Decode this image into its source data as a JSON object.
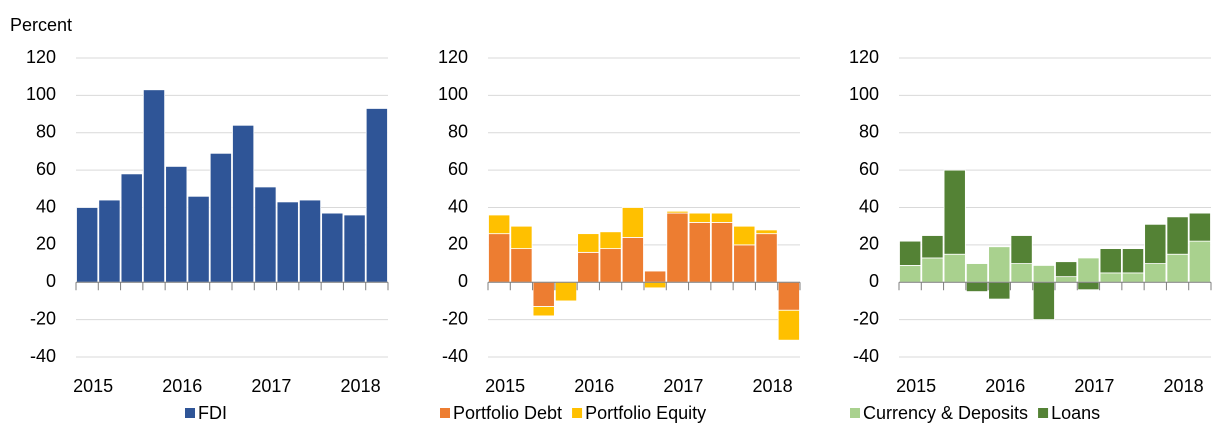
{
  "chart_data": [
    {
      "type": "bar",
      "stacked": false,
      "ylabel": "Percent",
      "categories": [
        "2015",
        null,
        null,
        null,
        "2016",
        null,
        null,
        null,
        "2017",
        null,
        null,
        null,
        "2018",
        null
      ],
      "series": [
        {
          "name": "FDI",
          "color": "#2f5597",
          "values": [
            40,
            44,
            58,
            103,
            62,
            46,
            69,
            84,
            51,
            43,
            44,
            37,
            36,
            93
          ]
        }
      ],
      "ylim": [
        -40,
        120
      ],
      "yticks": [
        -40,
        -20,
        0,
        20,
        40,
        60,
        80,
        100,
        120
      ],
      "grid": true
    },
    {
      "type": "bar",
      "stacked": true,
      "categories": [
        "2015",
        null,
        null,
        null,
        "2016",
        null,
        null,
        null,
        "2017",
        null,
        null,
        null,
        "2018",
        null
      ],
      "series": [
        {
          "name": "Portfolio Debt",
          "color": "#ed7d31",
          "values": [
            26,
            18,
            -13,
            0,
            16,
            18,
            24,
            6,
            37,
            32,
            32,
            20,
            26,
            -15
          ]
        },
        {
          "name": "Portfolio Equity",
          "color": "#ffc000",
          "values": [
            10,
            12,
            -5,
            -10,
            10,
            9,
            16,
            -3,
            1,
            5,
            5,
            10,
            2,
            -16
          ]
        }
      ],
      "ylim": [
        -40,
        120
      ],
      "yticks": [
        -40,
        -20,
        0,
        20,
        40,
        60,
        80,
        100,
        120
      ],
      "grid": true
    },
    {
      "type": "bar",
      "stacked": true,
      "categories": [
        "2015",
        null,
        null,
        null,
        "2016",
        null,
        null,
        null,
        "2017",
        null,
        null,
        null,
        "2018",
        null
      ],
      "series": [
        {
          "name": "Currency & Deposits",
          "color": "#a9d18e",
          "values": [
            9,
            13,
            15,
            10,
            19,
            10,
            9,
            3,
            13,
            5,
            5,
            10,
            15,
            22
          ]
        },
        {
          "name": "Loans",
          "color": "#548235",
          "values": [
            13,
            12,
            45,
            -5,
            -9,
            15,
            -20,
            8,
            -4,
            13,
            13,
            21,
            20,
            15
          ]
        }
      ],
      "ylim": [
        -40,
        120
      ],
      "yticks": [
        -40,
        -20,
        0,
        20,
        40,
        60,
        80,
        100,
        120
      ],
      "grid": true
    }
  ]
}
